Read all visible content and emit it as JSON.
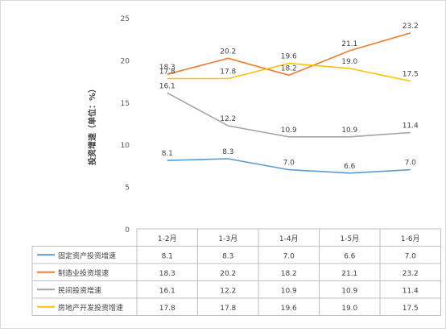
{
  "chart_data": {
    "type": "line",
    "title": "",
    "xlabel": "",
    "ylabel": "投资增速（单位：%）",
    "ylim": [
      0,
      25
    ],
    "yticks": [
      0,
      5,
      10,
      15,
      20,
      25
    ],
    "grid": false,
    "legend": "table-below",
    "categories": [
      "1-2月",
      "1-3月",
      "1-4月",
      "1-5月",
      "1-6月"
    ],
    "series": [
      {
        "name": "固定资产投资增速",
        "color": "#5b9bd5",
        "values": [
          8.1,
          8.3,
          7.0,
          6.6,
          7.0
        ]
      },
      {
        "name": "制造业投资增速",
        "color": "#ed7d31",
        "values": [
          18.3,
          20.2,
          18.2,
          21.1,
          23.2
        ]
      },
      {
        "name": "民间投资增速",
        "color": "#a5a5a5",
        "values": [
          16.1,
          12.2,
          10.9,
          10.9,
          11.4
        ]
      },
      {
        "name": "房地产开发投资增速",
        "color": "#ffc000",
        "values": [
          17.8,
          17.8,
          19.6,
          19.0,
          17.5
        ]
      }
    ]
  }
}
